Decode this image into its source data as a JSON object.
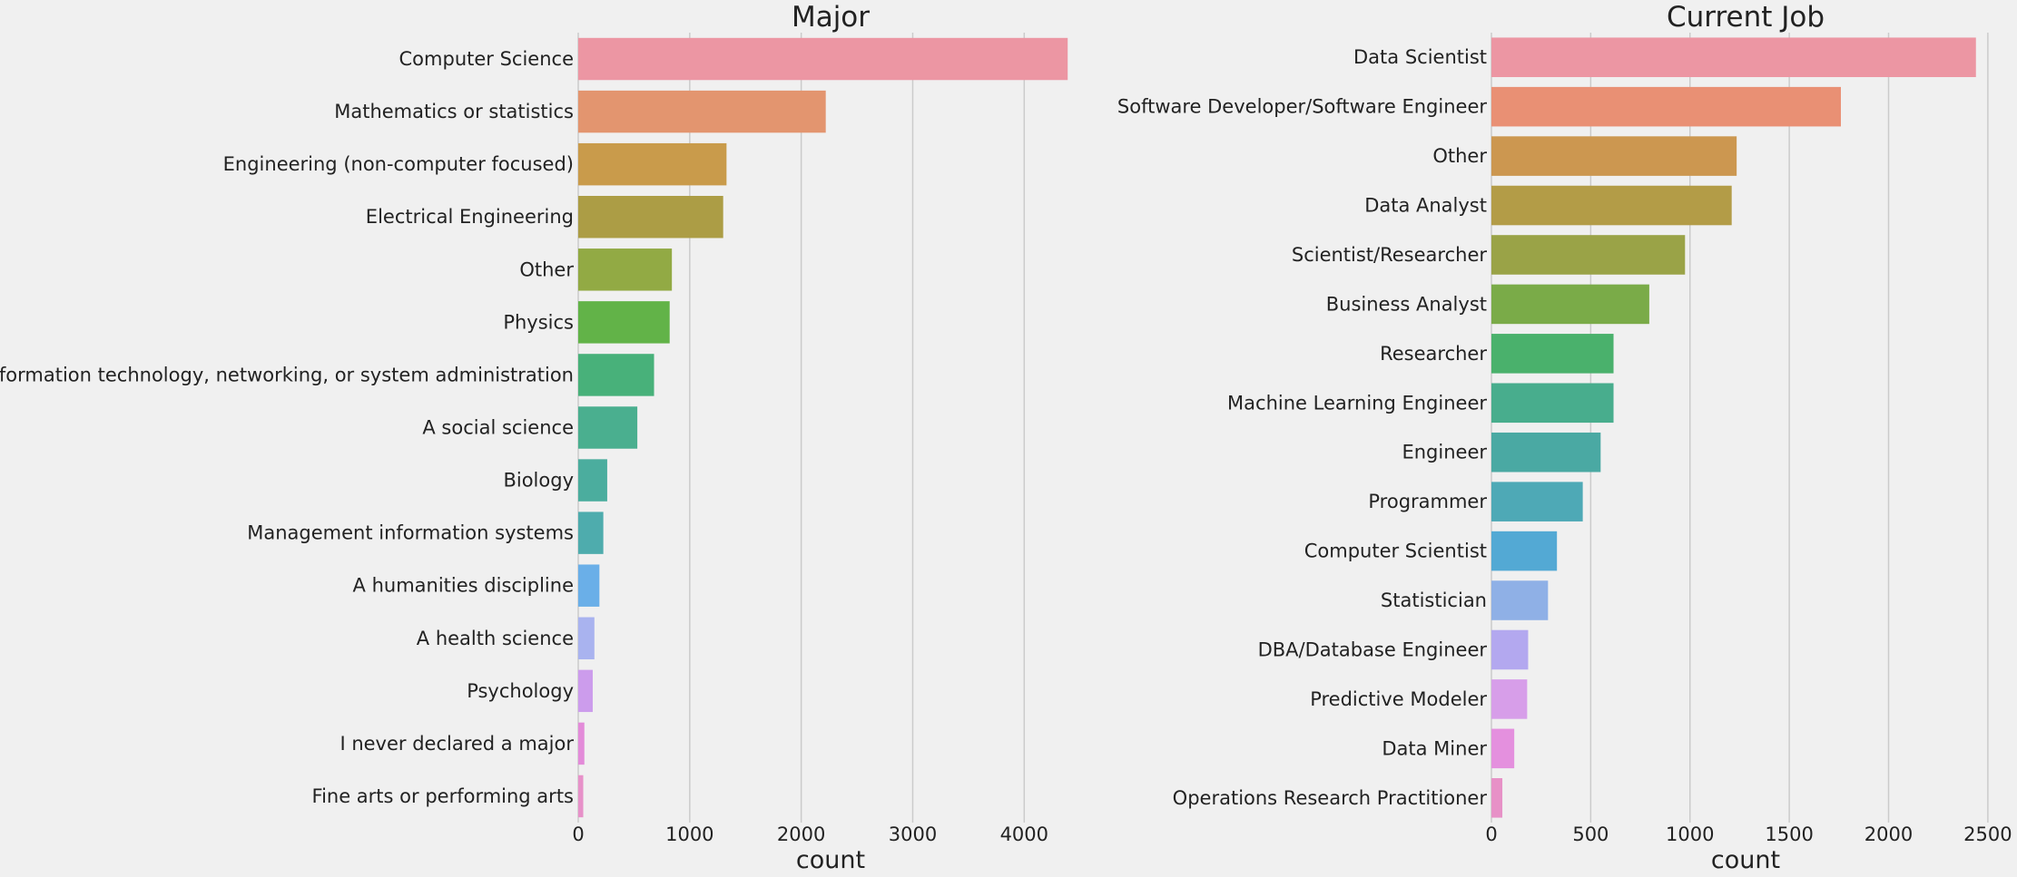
{
  "chart_data": [
    {
      "type": "bar",
      "orientation": "horizontal",
      "title": "Major",
      "xlabel": "count",
      "ylabel": "",
      "xlim": [
        0,
        4600
      ],
      "xticks": [
        0,
        1000,
        2000,
        3000,
        4000
      ],
      "grid": "vertical",
      "categories": [
        "Computer Science",
        "Mathematics or statistics",
        "Engineering (non-computer focused)",
        "Electrical Engineering",
        "Other",
        "Physics",
        "Information technology, networking, or system administration",
        "A social science",
        "Biology",
        "Management information systems",
        "A humanities discipline",
        "A health science",
        "Psychology",
        "I never declared a major",
        "Fine arts or performing arts"
      ],
      "values": [
        4390,
        2220,
        1330,
        1300,
        840,
        820,
        680,
        530,
        260,
        225,
        190,
        145,
        130,
        55,
        45
      ],
      "colors": [
        "#ec96a3",
        "#e3956f",
        "#c99b4b",
        "#ac9d45",
        "#92aa44",
        "#62b348",
        "#48b17a",
        "#4aaf8f",
        "#4bad9e",
        "#4eacad",
        "#6aafe8",
        "#a9b3ef",
        "#cc9cec",
        "#e38bd9",
        "#e791c9"
      ]
    },
    {
      "type": "bar",
      "orientation": "horizontal",
      "title": "Current Job",
      "xlabel": "count",
      "ylabel": "",
      "xlim": [
        0,
        2560
      ],
      "xticks": [
        0,
        500,
        1000,
        1500,
        2000,
        2500
      ],
      "grid": "vertical",
      "categories": [
        "Data Scientist",
        "Software Developer/Software Engineer",
        "Other",
        "Data Analyst",
        "Scientist/Researcher",
        "Business Analyst",
        "Researcher",
        "Machine Learning Engineer",
        "Engineer",
        "Programmer",
        "Computer Scientist",
        "Statistician",
        "DBA/Database Engineer",
        "Predictive Modeler",
        "Data Miner",
        "Operations Research Practitioner"
      ],
      "values": [
        2440,
        1760,
        1235,
        1210,
        975,
        795,
        615,
        615,
        550,
        460,
        330,
        285,
        185,
        180,
        115,
        55
      ],
      "colors": [
        "#ec96a3",
        "#e99074",
        "#cc9750",
        "#b39c47",
        "#9aa347",
        "#7aab48",
        "#4ab16c",
        "#48ad8d",
        "#4aa9a3",
        "#4ea9b6",
        "#53a9d4",
        "#8fb0e6",
        "#b3a8ef",
        "#d79ee9",
        "#e490de",
        "#e791c7"
      ]
    }
  ]
}
